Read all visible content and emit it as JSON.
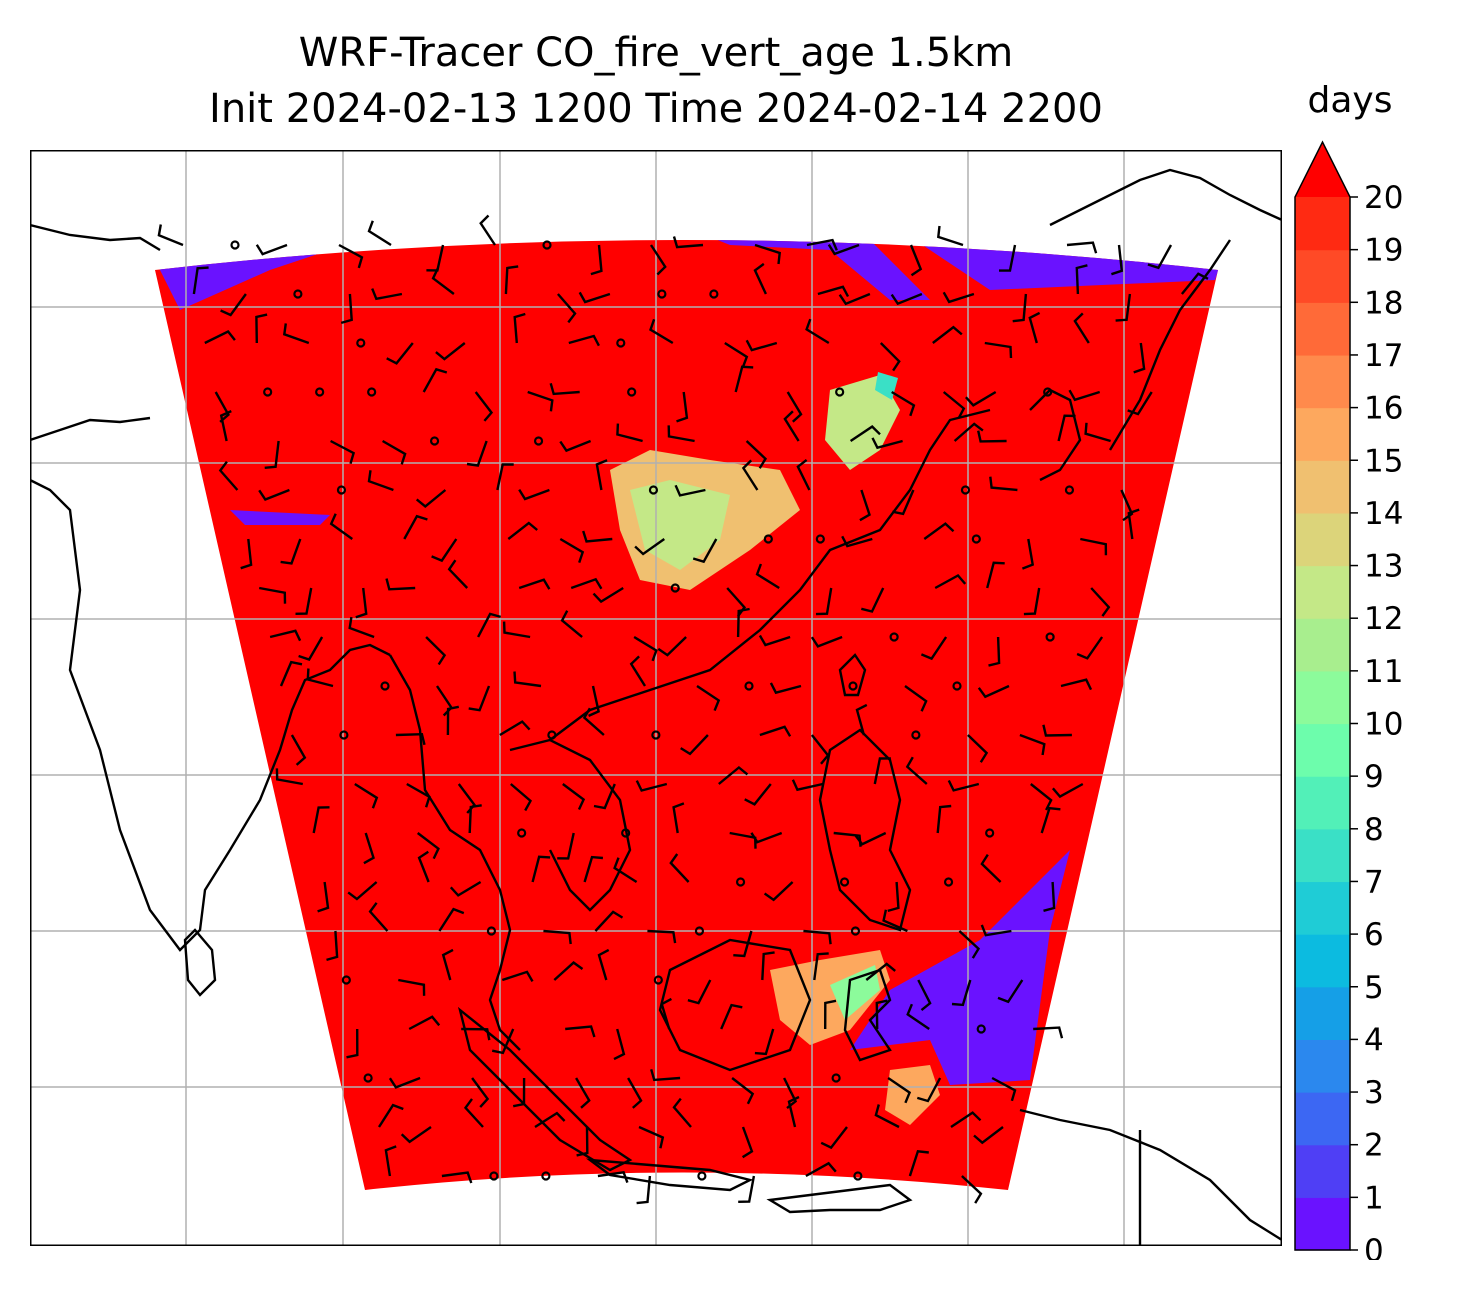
{
  "title_line1": "WRF-Tracer CO_fire_vert_age 1.5km",
  "title_line2": "Init 2024-02-13 1200 Time 2024-02-14 2200",
  "colorbar": {
    "units": "days",
    "min": 0,
    "max": 20,
    "extend": "max",
    "ticks": [
      "0",
      "1",
      "2",
      "3",
      "4",
      "5",
      "6",
      "7",
      "8",
      "9",
      "10",
      "11",
      "12",
      "13",
      "14",
      "15",
      "16",
      "17",
      "18",
      "19",
      "20"
    ],
    "colors": [
      "#6a12ff",
      "#4f3ff5",
      "#3c67f3",
      "#2b88ee",
      "#159fe7",
      "#0cbbe0",
      "#1fccd6",
      "#3ae0c6",
      "#52f0b8",
      "#6dfdac",
      "#8cfb9b",
      "#a8ee8e",
      "#c4e887",
      "#dcd47a",
      "#f0c070",
      "#fda85e",
      "#ff8a4c",
      "#ff6a38",
      "#ff4a26",
      "#ff2a12"
    ],
    "extend_color": "#ff0000"
  },
  "map": {
    "domain_fill_color": "#ff0000",
    "low_age_color": "#6a12ff",
    "gridlines": true,
    "grid_color": "#b0b0b0",
    "wind_barbs": true
  }
}
